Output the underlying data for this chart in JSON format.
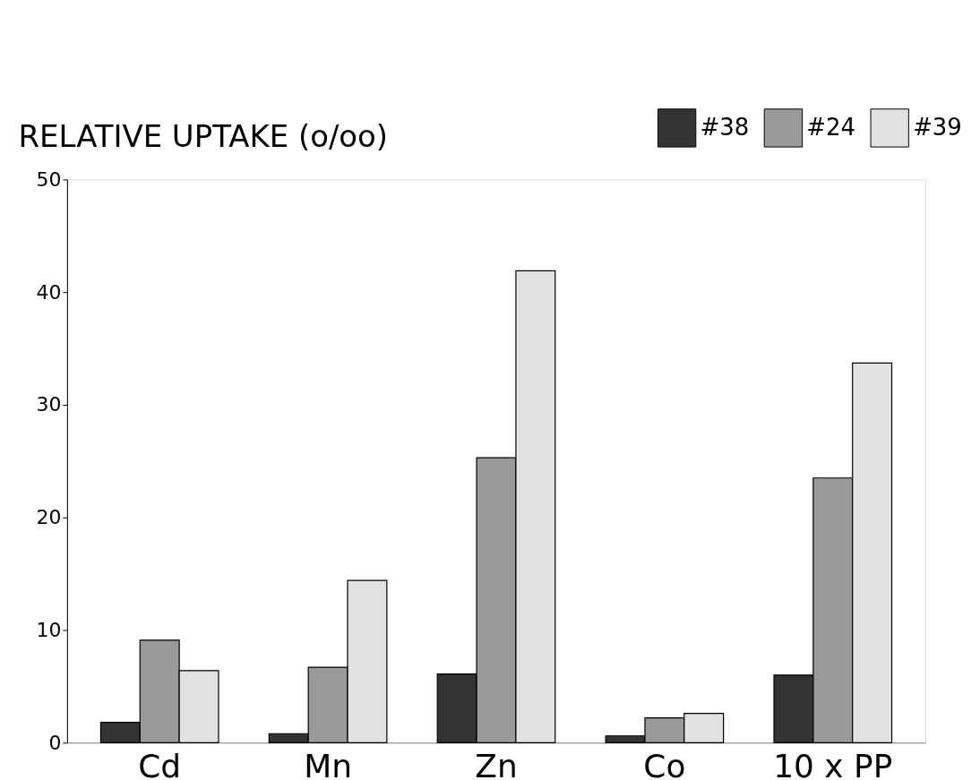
{
  "chart_data": {
    "type": "bar",
    "ylabel": "RELATIVE UPTAKE (o/oo)",
    "categories": [
      "Cd",
      "Mn",
      "Zn",
      "Co",
      "10 x PP"
    ],
    "series": [
      {
        "name": "#38",
        "color": "#333333",
        "values": [
          1.8,
          0.8,
          6.1,
          0.6,
          6.0
        ]
      },
      {
        "name": "#24",
        "color": "#9a9a9a",
        "values": [
          9.1,
          6.7,
          25.3,
          2.2,
          23.5
        ]
      },
      {
        "name": "#39",
        "color": "#e2e2e2",
        "values": [
          6.4,
          14.4,
          41.9,
          2.6,
          33.7
        ]
      }
    ],
    "ylim": [
      0,
      50
    ],
    "yticks": [
      0,
      10,
      20,
      30,
      40,
      50
    ],
    "grid": false,
    "legend": "top right"
  }
}
